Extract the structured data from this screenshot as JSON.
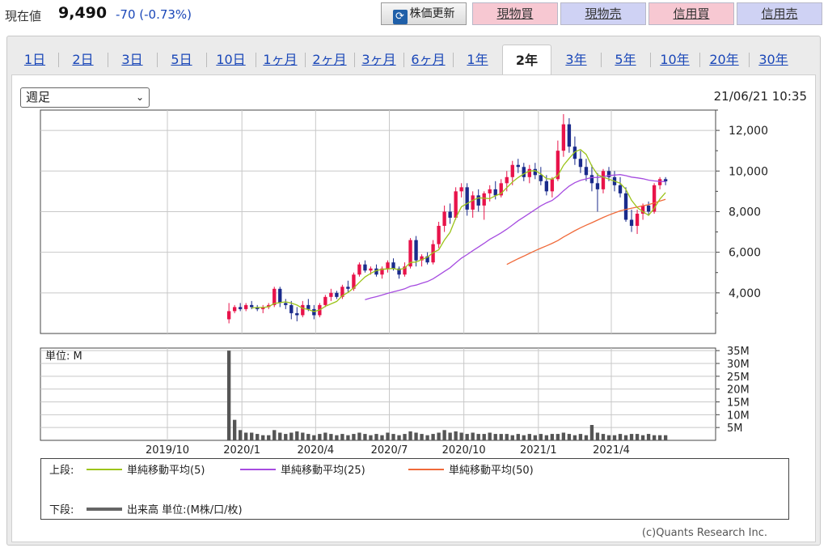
{
  "header": {
    "price_label": "現在値",
    "price_value": "9,490",
    "price_change": "-70 (-0.73%)",
    "buttons": {
      "refresh": "株価更新",
      "spot_buy": "現物買",
      "spot_sell": "現物売",
      "margin_buy": "信用買",
      "margin_sell": "信用売"
    }
  },
  "tabs": [
    "1日",
    "2日",
    "3日",
    "5日",
    "10日",
    "1ヶ月",
    "2ヶ月",
    "3ヶ月",
    "6ヶ月",
    "1年",
    "2年",
    "3年",
    "5年",
    "10年",
    "20年",
    "30年"
  ],
  "active_tab": "2年",
  "period_select": "週足",
  "timestamp": "21/06/21 10:35",
  "legend": {
    "upper_label": "上段:",
    "sma5": "単純移動平均(5)",
    "sma25": "単純移動平均(25)",
    "sma50": "単純移動平均(50)",
    "lower_label": "下段:",
    "volume": "出来高 単位:(M株/口/枚)"
  },
  "copyright": "(c)Quants Research Inc.",
  "colors": {
    "up": "#e8134a",
    "down": "#1a2b8c",
    "sma5": "#9cc41a",
    "sma25": "#a64ce0",
    "sma50": "#f06a3a",
    "volume": "#555555",
    "grid": "#c8c8c8"
  },
  "chart_data": {
    "type": "candlestick",
    "x_tick_labels": [
      "2019/10",
      "2020/1",
      "2020/4",
      "2020/7",
      "2020/10",
      "2021/1",
      "2021/4"
    ],
    "price_axis": {
      "ylim": [
        2000,
        13000
      ],
      "ticks": [
        "4,000",
        "6,000",
        "8,000",
        "10,000",
        "12,000"
      ],
      "tick_values": [
        4000,
        6000,
        8000,
        10000,
        12000
      ]
    },
    "volume_axis": {
      "unit_label": "単位: M",
      "ylim": [
        0,
        36
      ],
      "ticks": [
        "5M",
        "10M",
        "15M",
        "20M",
        "25M",
        "30M",
        "35M"
      ],
      "tick_values": [
        5,
        10,
        15,
        20,
        25,
        30,
        35
      ]
    },
    "weeks_start": "2019-12-16",
    "candles": [
      [
        2700,
        3500,
        2500,
        3100
      ],
      [
        3100,
        3400,
        3000,
        3300
      ],
      [
        3300,
        3500,
        3100,
        3200
      ],
      [
        3200,
        3500,
        3100,
        3400
      ],
      [
        3400,
        3600,
        3200,
        3300
      ],
      [
        3300,
        3400,
        3100,
        3200
      ],
      [
        3200,
        3400,
        3000,
        3300
      ],
      [
        3300,
        3500,
        3200,
        3400
      ],
      [
        3400,
        4300,
        3300,
        4200
      ],
      [
        4200,
        4300,
        3300,
        3500
      ],
      [
        3500,
        3700,
        3200,
        3400
      ],
      [
        3400,
        3600,
        2700,
        3000
      ],
      [
        3000,
        3300,
        2600,
        2900
      ],
      [
        2900,
        3600,
        2800,
        3400
      ],
      [
        3400,
        3700,
        3100,
        3200
      ],
      [
        3200,
        3400,
        2700,
        2900
      ],
      [
        2900,
        3500,
        2800,
        3400
      ],
      [
        3400,
        3900,
        3300,
        3800
      ],
      [
        3800,
        4200,
        3600,
        4000
      ],
      [
        4000,
        4100,
        3700,
        3800
      ],
      [
        3800,
        4400,
        3700,
        4300
      ],
      [
        4300,
        4600,
        4000,
        4200
      ],
      [
        4200,
        5000,
        4100,
        4900
      ],
      [
        4900,
        5500,
        4800,
        5400
      ],
      [
        5400,
        5600,
        5000,
        5100
      ],
      [
        5100,
        5300,
        4900,
        5200
      ],
      [
        5200,
        5400,
        4800,
        4900
      ],
      [
        4900,
        5300,
        4700,
        5200
      ],
      [
        5200,
        5600,
        5000,
        5500
      ],
      [
        5500,
        5700,
        5100,
        5200
      ],
      [
        5200,
        5300,
        4700,
        4900
      ],
      [
        4900,
        5500,
        4800,
        5300
      ],
      [
        5300,
        6700,
        5200,
        6600
      ],
      [
        6600,
        6800,
        5300,
        5600
      ],
      [
        5600,
        5900,
        5300,
        5800
      ],
      [
        5800,
        6000,
        5400,
        5500
      ],
      [
        5500,
        6600,
        5400,
        6400
      ],
      [
        6400,
        7500,
        6200,
        7300
      ],
      [
        7300,
        8300,
        7000,
        8000
      ],
      [
        8000,
        8400,
        7400,
        7700
      ],
      [
        7700,
        9200,
        7600,
        9000
      ],
      [
        9000,
        9400,
        8700,
        9200
      ],
      [
        9200,
        9400,
        7800,
        8100
      ],
      [
        8100,
        9000,
        7700,
        8800
      ],
      [
        8800,
        9100,
        8000,
        8300
      ],
      [
        8300,
        9000,
        7600,
        8900
      ],
      [
        8900,
        9300,
        8500,
        9100
      ],
      [
        9100,
        9500,
        8600,
        8800
      ],
      [
        8800,
        9600,
        8700,
        9400
      ],
      [
        9400,
        10000,
        9000,
        9700
      ],
      [
        9700,
        10500,
        9300,
        10300
      ],
      [
        10300,
        10600,
        9900,
        10200
      ],
      [
        10200,
        10400,
        9500,
        9700
      ],
      [
        9700,
        10300,
        9400,
        10100
      ],
      [
        10100,
        10400,
        9600,
        9800
      ],
      [
        9800,
        10200,
        9300,
        9500
      ],
      [
        9500,
        9800,
        8800,
        9000
      ],
      [
        9000,
        9700,
        8700,
        9600
      ],
      [
        9600,
        11500,
        9500,
        11000
      ],
      [
        11000,
        12800,
        10700,
        12300
      ],
      [
        12300,
        12600,
        10900,
        11200
      ],
      [
        11200,
        11700,
        10300,
        10600
      ],
      [
        10600,
        11000,
        9900,
        10200
      ],
      [
        10200,
        10600,
        9500,
        9800
      ],
      [
        9800,
        10300,
        9000,
        9400
      ],
      [
        9400,
        9900,
        8000,
        9100
      ],
      [
        9100,
        10100,
        8900,
        10000
      ],
      [
        10000,
        10200,
        9500,
        9700
      ],
      [
        9700,
        10000,
        9000,
        9300
      ],
      [
        9300,
        9700,
        8700,
        8900
      ],
      [
        8900,
        9200,
        7500,
        7600
      ],
      [
        7600,
        8100,
        7000,
        7300
      ],
      [
        7300,
        8100,
        6900,
        7900
      ],
      [
        7900,
        8400,
        7600,
        8300
      ],
      [
        8300,
        8500,
        7800,
        8000
      ],
      [
        8000,
        9400,
        7900,
        9300
      ],
      [
        9300,
        9700,
        9100,
        9600
      ],
      [
        9600,
        9700,
        9300,
        9490
      ]
    ],
    "volume": [
      35,
      8,
      4,
      3,
      3,
      2.5,
      2,
      2,
      4,
      3,
      2.5,
      3,
      3.5,
      3,
      2.5,
      2,
      2.5,
      3,
      2.5,
      2,
      2.5,
      2,
      2.5,
      3,
      2.5,
      2,
      2.5,
      2,
      3,
      2.5,
      2,
      2.5,
      3.5,
      3,
      2.5,
      2,
      2.5,
      3,
      4,
      3,
      3.5,
      3,
      2.5,
      3,
      2.5,
      2.5,
      3,
      2.5,
      2.5,
      2.5,
      2,
      2.5,
      2,
      2.5,
      2,
      2.5,
      2,
      2.5,
      2.5,
      3,
      2.5,
      2,
      2.5,
      2,
      6,
      3,
      2.5,
      2,
      2,
      2.5,
      2,
      2.5,
      2.5,
      2,
      2.5,
      2,
      2,
      2
    ]
  }
}
